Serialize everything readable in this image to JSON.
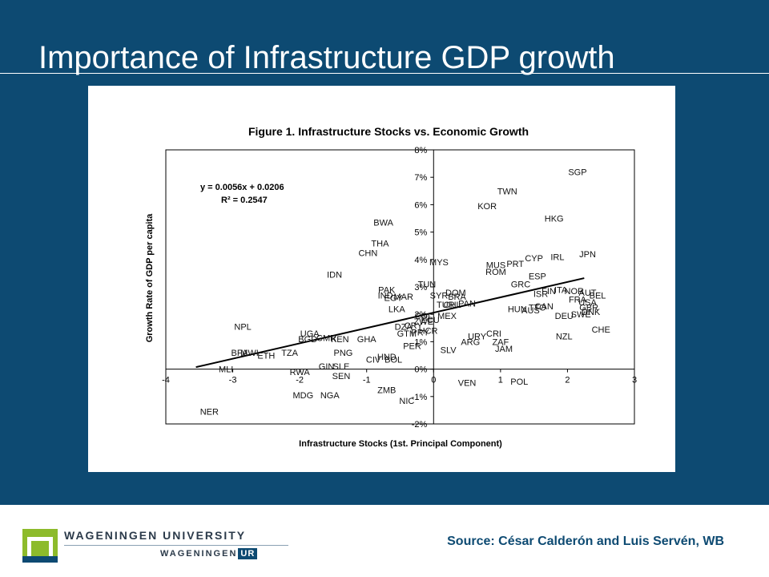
{
  "slide": {
    "title": "Importance of Infrastructure GDP growth",
    "source": "Source: César Calderón and Luis Servén, WB",
    "background_color": "#0d4a72"
  },
  "logo": {
    "university_name": "WAGENINGEN UNIVERSITY",
    "sub_name": "WAGENINGEN",
    "sub_badge": "UR",
    "icon": "wageningen-logo-icon",
    "colors": {
      "green": "#8dbb2b",
      "blue": "#0d4a72"
    }
  },
  "chart_data": {
    "type": "scatter",
    "title": "Figure 1. Infrastructure Stocks vs. Economic Growth",
    "xlabel": "Infrastructure Stocks (1st. Principal Component)",
    "ylabel": "Growth Rate of GDP per capita",
    "xlim": [
      -4,
      3
    ],
    "ylim": [
      -2,
      8
    ],
    "x_ticks": [
      "-4",
      "-3",
      "-2",
      "-1",
      "0",
      "1",
      "2",
      "3"
    ],
    "y_ticks": [
      "-2%",
      "-1%",
      "0%",
      "1%",
      "2%",
      "3%",
      "4%",
      "5%",
      "6%",
      "7%",
      "8%"
    ],
    "equation": "y = 0.0056x + 0.0206",
    "r_squared": "R² = 0.2547",
    "trendline": {
      "slope": 0.56,
      "intercept": 2.06,
      "x_from": -3.55,
      "x_to": 2.25
    },
    "grid": false,
    "points": [
      {
        "label": "SGP",
        "x": 2.15,
        "y": 7.2
      },
      {
        "label": "TWN",
        "x": 1.1,
        "y": 6.5
      },
      {
        "label": "KOR",
        "x": 0.8,
        "y": 5.95
      },
      {
        "label": "HKG",
        "x": 1.8,
        "y": 5.5
      },
      {
        "label": "BWA",
        "x": -0.75,
        "y": 5.35
      },
      {
        "label": "THA",
        "x": -0.8,
        "y": 4.6
      },
      {
        "label": "CHN",
        "x": -0.98,
        "y": 4.25
      },
      {
        "label": "IRL",
        "x": 1.85,
        "y": 4.1
      },
      {
        "label": "JPN",
        "x": 2.3,
        "y": 4.2
      },
      {
        "label": "CYP",
        "x": 1.5,
        "y": 4.05
      },
      {
        "label": "PRT",
        "x": 1.22,
        "y": 3.85
      },
      {
        "label": "MYS",
        "x": 0.08,
        "y": 3.9
      },
      {
        "label": "MUS",
        "x": 0.93,
        "y": 3.8
      },
      {
        "label": "ROM",
        "x": 0.93,
        "y": 3.55
      },
      {
        "label": "IDN",
        "x": -1.48,
        "y": 3.45
      },
      {
        "label": "ESP",
        "x": 1.55,
        "y": 3.4
      },
      {
        "label": "GRC",
        "x": 1.3,
        "y": 3.1
      },
      {
        "label": "TUN",
        "x": -0.1,
        "y": 3.1
      },
      {
        "label": "PAK",
        "x": -0.7,
        "y": 2.9
      },
      {
        "label": "IND",
        "x": -0.72,
        "y": 2.7
      },
      {
        "label": "EGY",
        "x": -0.6,
        "y": 2.6
      },
      {
        "label": "MAR",
        "x": -0.45,
        "y": 2.65
      },
      {
        "label": "SYR",
        "x": 0.08,
        "y": 2.7
      },
      {
        "label": "DOM",
        "x": 0.33,
        "y": 2.8
      },
      {
        "label": "BRA",
        "x": 0.35,
        "y": 2.65
      },
      {
        "label": "ISR",
        "x": 1.6,
        "y": 2.75
      },
      {
        "label": "FIN",
        "x": 1.72,
        "y": 2.85
      },
      {
        "label": "ITA",
        "x": 1.9,
        "y": 2.9
      },
      {
        "label": "NOR",
        "x": 2.1,
        "y": 2.85
      },
      {
        "label": "AUT",
        "x": 2.3,
        "y": 2.8
      },
      {
        "label": "BEL",
        "x": 2.45,
        "y": 2.7
      },
      {
        "label": "FRA",
        "x": 2.15,
        "y": 2.55
      },
      {
        "label": "USA",
        "x": 2.3,
        "y": 2.45
      },
      {
        "label": "CAN",
        "x": 1.65,
        "y": 2.3
      },
      {
        "label": "GBR",
        "x": 2.32,
        "y": 2.25
      },
      {
        "label": "DNK",
        "x": 2.35,
        "y": 2.1
      },
      {
        "label": "SWE",
        "x": 2.2,
        "y": 2.0
      },
      {
        "label": "DEU",
        "x": 1.95,
        "y": 1.95
      },
      {
        "label": "TTO",
        "x": 1.55,
        "y": 2.25
      },
      {
        "label": "HUN",
        "x": 1.25,
        "y": 2.2
      },
      {
        "label": "AUS",
        "x": 1.45,
        "y": 2.15
      },
      {
        "label": "TUR",
        "x": 0.18,
        "y": 2.35
      },
      {
        "label": "CHL",
        "x": 0.28,
        "y": 2.35
      },
      {
        "label": "PAN",
        "x": 0.5,
        "y": 2.4
      },
      {
        "label": "LKA",
        "x": -0.55,
        "y": 2.2
      },
      {
        "label": "COL",
        "x": -0.15,
        "y": 1.95
      },
      {
        "label": "MEX",
        "x": 0.2,
        "y": 1.95
      },
      {
        "label": "ECU",
        "x": -0.05,
        "y": 1.8
      },
      {
        "label": "ZWE",
        "x": -0.15,
        "y": 1.75
      },
      {
        "label": "DZA",
        "x": -0.45,
        "y": 1.55
      },
      {
        "label": "CRY",
        "x": -0.3,
        "y": 1.6
      },
      {
        "label": "GTM",
        "x": -0.4,
        "y": 1.3
      },
      {
        "label": "PRY",
        "x": -0.2,
        "y": 1.35
      },
      {
        "label": "HCR",
        "x": -0.08,
        "y": 1.4
      },
      {
        "label": "PER",
        "x": -0.32,
        "y": 0.85
      },
      {
        "label": "NPL",
        "x": -2.85,
        "y": 1.55
      },
      {
        "label": "UGA",
        "x": -1.85,
        "y": 1.3
      },
      {
        "label": "BGD",
        "x": -1.88,
        "y": 1.1
      },
      {
        "label": "CMR",
        "x": -1.6,
        "y": 1.15
      },
      {
        "label": "KEN",
        "x": -1.4,
        "y": 1.1
      },
      {
        "label": "GHA",
        "x": -1.0,
        "y": 1.1
      },
      {
        "label": "URY",
        "x": 0.65,
        "y": 1.2
      },
      {
        "label": "CRI",
        "x": 0.9,
        "y": 1.3
      },
      {
        "label": "ZAF",
        "x": 1.0,
        "y": 1.0
      },
      {
        "label": "ARG",
        "x": 0.55,
        "y": 1.0
      },
      {
        "label": "JAM",
        "x": 1.05,
        "y": 0.75
      },
      {
        "label": "SLV",
        "x": 0.22,
        "y": 0.7
      },
      {
        "label": "NZL",
        "x": 1.95,
        "y": 1.2
      },
      {
        "label": "CHE",
        "x": 2.5,
        "y": 1.45
      },
      {
        "label": "PNG",
        "x": -1.35,
        "y": 0.6
      },
      {
        "label": "TZA",
        "x": -2.15,
        "y": 0.6
      },
      {
        "label": "ETH",
        "x": -2.5,
        "y": 0.5
      },
      {
        "label": "MWI",
        "x": -2.75,
        "y": 0.6
      },
      {
        "label": "BFA",
        "x": -2.9,
        "y": 0.6
      },
      {
        "label": "HND",
        "x": -0.7,
        "y": 0.45
      },
      {
        "label": "CIV",
        "x": -0.9,
        "y": 0.35
      },
      {
        "label": "BOL",
        "x": -0.6,
        "y": 0.35
      },
      {
        "label": "GIN",
        "x": -1.6,
        "y": 0.1
      },
      {
        "label": "SLE",
        "x": -1.38,
        "y": 0.1
      },
      {
        "label": "SEN",
        "x": -1.38,
        "y": -0.25
      },
      {
        "label": "RWA",
        "x": -2.0,
        "y": -0.1
      },
      {
        "label": "MLI",
        "x": -3.1,
        "y": 0.0
      },
      {
        "label": "VEN",
        "x": 0.5,
        "y": -0.5
      },
      {
        "label": "POL",
        "x": 1.28,
        "y": -0.45
      },
      {
        "label": "ZMB",
        "x": -0.7,
        "y": -0.75
      },
      {
        "label": "NIC",
        "x": -0.4,
        "y": -1.15
      },
      {
        "label": "MDG",
        "x": -1.95,
        "y": -0.95
      },
      {
        "label": "NGA",
        "x": -1.55,
        "y": -0.95
      },
      {
        "label": "NER",
        "x": -3.35,
        "y": -1.55
      }
    ]
  }
}
